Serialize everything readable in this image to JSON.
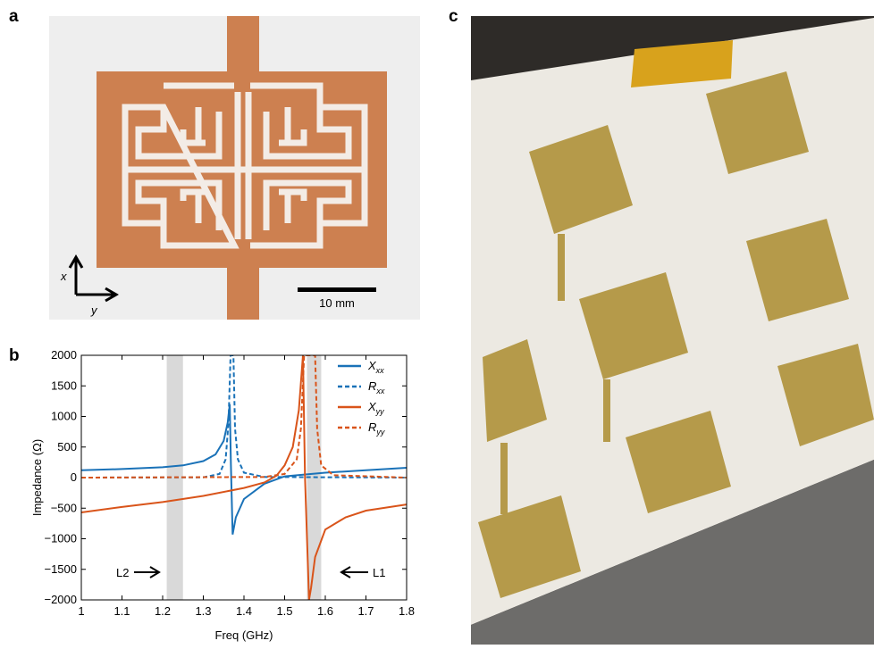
{
  "panels": {
    "a": "a",
    "b": "b",
    "c": "c"
  },
  "panel_a": {
    "axis_x": "x",
    "axis_y": "y",
    "scale_bar": "10 mm"
  },
  "chart_data": {
    "type": "line",
    "xlabel": "Freq (GHz)",
    "ylabel": "Impedance (Ω)",
    "xlim": [
      1,
      1.8
    ],
    "ylim": [
      -2000,
      2000
    ],
    "xticks": [
      1,
      1.1,
      1.2,
      1.3,
      1.4,
      1.5,
      1.6,
      1.7,
      1.8
    ],
    "yticks": [
      {
        "value": -2000,
        "label": "−2000"
      },
      {
        "value": -1500,
        "label": "−1500"
      },
      {
        "value": -1000,
        "label": "−1000"
      },
      {
        "value": -500,
        "label": "−500"
      },
      0,
      500,
      1000,
      1500,
      2000
    ],
    "shaded_regions": [
      [
        1.21,
        1.25
      ],
      [
        1.555,
        1.59
      ]
    ],
    "shade_color": "#d9d9d9",
    "annotations": [
      "L2",
      "L1"
    ],
    "series": [
      {
        "name": "X",
        "subscript": "xx",
        "color": "#1a72b8",
        "style": "solid",
        "x": [
          1,
          1.1,
          1.2,
          1.25,
          1.3,
          1.33,
          1.35,
          1.36,
          1.365,
          1.368,
          1.372,
          1.38,
          1.4,
          1.45,
          1.5,
          1.6,
          1.7,
          1.8
        ],
        "values": [
          120,
          140,
          170,
          200,
          270,
          380,
          600,
          900,
          1200,
          200,
          -930,
          -650,
          -350,
          -100,
          20,
          80,
          120,
          160
        ]
      },
      {
        "name": "R",
        "subscript": "xx",
        "color": "#1a72b8",
        "style": "dashed",
        "x": [
          1,
          1.3,
          1.34,
          1.355,
          1.362,
          1.367,
          1.374,
          1.378,
          1.385,
          1.4,
          1.45,
          1.8
        ],
        "values": [
          0,
          5,
          60,
          300,
          900,
          2000,
          2000,
          800,
          300,
          80,
          10,
          0
        ]
      },
      {
        "name": "X",
        "subscript": "yy",
        "color": "#d9541a",
        "style": "solid",
        "x": [
          1,
          1.1,
          1.2,
          1.3,
          1.4,
          1.45,
          1.48,
          1.5,
          1.52,
          1.535,
          1.545,
          1.55,
          1.56,
          1.565,
          1.575,
          1.6,
          1.65,
          1.7,
          1.8
        ],
        "values": [
          -570,
          -480,
          -400,
          -300,
          -170,
          -80,
          30,
          200,
          500,
          1100,
          2000,
          0,
          -2000,
          -1800,
          -1300,
          -850,
          -650,
          -540,
          -440
        ]
      },
      {
        "name": "R",
        "subscript": "yy",
        "color": "#d9541a",
        "style": "dashed",
        "x": [
          1,
          1.45,
          1.5,
          1.53,
          1.54,
          1.548,
          1.552,
          1.575,
          1.58,
          1.59,
          1.62,
          1.8
        ],
        "values": [
          0,
          10,
          60,
          300,
          800,
          2000,
          2000,
          2000,
          800,
          200,
          40,
          0
        ]
      }
    ]
  }
}
